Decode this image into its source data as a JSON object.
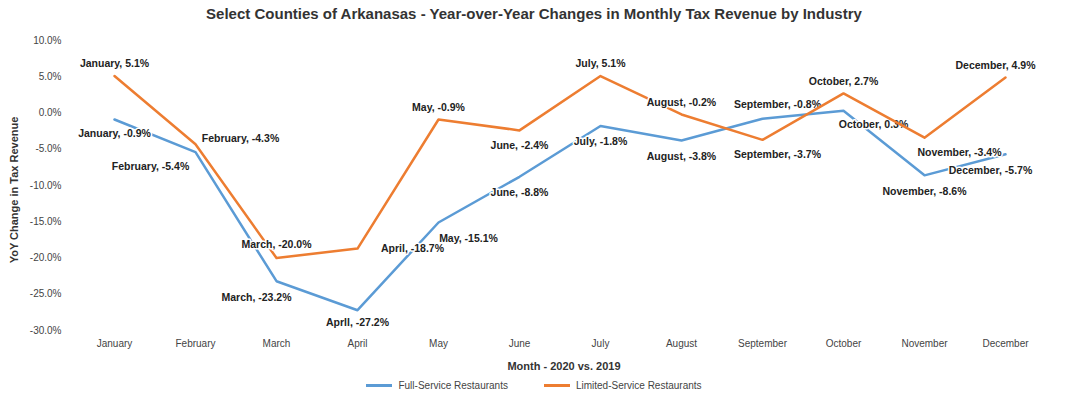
{
  "chart_data": {
    "type": "line",
    "title": "Select Counties of Arkanasas - Year-over-Year Changes in Monthly Tax Revenue by Industry",
    "x_label": "Month - 2020 vs. 2019",
    "y_label": "YoY Change in Tax Revenue",
    "categories": [
      "January",
      "February",
      "March",
      "April",
      "May",
      "June",
      "July",
      "August",
      "September",
      "October",
      "November",
      "December"
    ],
    "series": [
      {
        "name": "Full-Service Restaurants",
        "color": "#5b9bd5",
        "values": [
          -0.9,
          -5.4,
          -23.2,
          -27.2,
          -15.1,
          -8.8,
          -1.8,
          -3.8,
          -0.8,
          0.3,
          -8.6,
          -5.7
        ],
        "value_labels": [
          "January, -0.9%",
          "February, -5.4%",
          "March, -23.2%",
          "Aprll, -27.2%",
          "May, -15.1%",
          "June, -8.8%",
          "July, -1.8%",
          "August, -3.8%",
          "September, -0.8%",
          "October, 0.3%",
          "November, -8.6%",
          "December, -5.7%"
        ]
      },
      {
        "name": "Limited-Service Restaurants",
        "color": "#ed7d31",
        "values": [
          5.1,
          -4.3,
          -20.0,
          -18.7,
          -0.9,
          -2.4,
          5.1,
          -0.2,
          -3.7,
          2.7,
          -3.4,
          4.9
        ],
        "value_labels": [
          "January, 5.1%",
          "February, -4.3%",
          "March, -20.0%",
          "April, -18.7%",
          "May, -0.9%",
          "June, -2.4%",
          "July, 5.1%",
          "August, -0.2%",
          "September, -3.7%",
          "October, 2.7%",
          "November, -3.4%",
          "December, 4.9%"
        ]
      }
    ],
    "ylim": [
      -30,
      10
    ],
    "yticks": [
      {
        "value": -30,
        "label": "-30.0%"
      },
      {
        "value": -25,
        "label": "-25.0%"
      },
      {
        "value": -20,
        "label": "-20.0%"
      },
      {
        "value": -15,
        "label": "-15.0%"
      },
      {
        "value": -10,
        "label": "-10.0%"
      },
      {
        "value": -5,
        "label": "-5.0%"
      },
      {
        "value": 0,
        "label": "0.0%"
      },
      {
        "value": 5,
        "label": "5.0%"
      },
      {
        "value": 10,
        "label": "10.0%"
      }
    ],
    "grid": false,
    "data_labels": true,
    "legend": "bottom"
  }
}
